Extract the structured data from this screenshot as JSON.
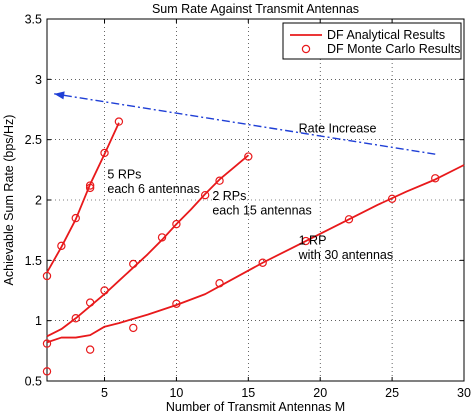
{
  "chart_data": {
    "type": "line",
    "title": "Sum Rate Against Transmit Antennas",
    "xlabel": "Number of Transmit Antennas M",
    "ylabel": "Achievable Sum Rate (bps/Hz)",
    "xlim": [
      1,
      30
    ],
    "ylim": [
      0.5,
      3.5
    ],
    "xticks": [
      5,
      10,
      15,
      20,
      25,
      30
    ],
    "yticks": [
      0.5,
      1,
      1.5,
      2,
      2.5,
      3,
      3.5
    ],
    "grid": true,
    "legend_position": "top-right",
    "legend": [
      {
        "label": "DF Analytical Results",
        "style": "line",
        "color": "#e8191b"
      },
      {
        "label": "DF Monte Carlo Results",
        "style": "circle-marker",
        "color": "#e8191b"
      }
    ],
    "series_color": "#e8191b",
    "annotation_color": "#1f3fd6",
    "series": [
      {
        "analytical": {
          "x": [
            1,
            2,
            3,
            4,
            5,
            6
          ],
          "y": [
            1.4,
            1.61,
            1.84,
            2.13,
            2.38,
            2.64
          ]
        },
        "monte_carlo": {
          "x": [
            1,
            2,
            3,
            4,
            4,
            5,
            6
          ],
          "y": [
            1.37,
            1.62,
            1.85,
            2.1,
            2.12,
            2.39,
            2.65
          ]
        }
      },
      {
        "analytical": {
          "x": [
            1,
            2,
            3,
            4,
            5,
            6,
            7,
            8,
            9,
            10,
            11,
            12,
            13,
            14,
            15
          ],
          "y": [
            0.87,
            0.93,
            1.02,
            1.12,
            1.22,
            1.33,
            1.44,
            1.55,
            1.67,
            1.8,
            1.92,
            2.05,
            2.17,
            2.27,
            2.37
          ]
        },
        "monte_carlo": {
          "x": [
            1,
            3,
            4,
            5,
            7,
            9,
            10,
            12,
            13,
            15
          ],
          "y": [
            0.81,
            1.02,
            1.15,
            1.25,
            1.47,
            1.69,
            1.8,
            2.04,
            2.16,
            2.36
          ]
        }
      },
      {
        "analytical": {
          "x": [
            1,
            2,
            3,
            4,
            5,
            6,
            8,
            10,
            12,
            14,
            16,
            18,
            20,
            22,
            24,
            26,
            28,
            30
          ],
          "y": [
            0.82,
            0.86,
            0.86,
            0.88,
            0.95,
            0.98,
            1.05,
            1.13,
            1.22,
            1.35,
            1.48,
            1.6,
            1.72,
            1.84,
            1.96,
            2.07,
            2.17,
            2.29
          ]
        },
        "monte_carlo": {
          "x": [
            1,
            4,
            7,
            10,
            13,
            16,
            19,
            22,
            25,
            28
          ],
          "y": [
            0.58,
            0.76,
            0.94,
            1.14,
            1.31,
            1.48,
            1.66,
            1.84,
            2.01,
            2.18
          ]
        }
      }
    ],
    "annotations": [
      {
        "text": "5 RPs",
        "x": 5.2,
        "y": 2.18
      },
      {
        "text": "each 6 antennas",
        "x": 5.2,
        "y": 2.06
      },
      {
        "text": "2 RPs",
        "x": 12.5,
        "y": 2.0
      },
      {
        "text": "each 15 antennas",
        "x": 12.5,
        "y": 1.88
      },
      {
        "text": "1 RP",
        "x": 18.5,
        "y": 1.63
      },
      {
        "text": "with 30 antennas",
        "x": 18.5,
        "y": 1.51
      },
      {
        "text": "Rate Increase",
        "x": 18.5,
        "y": 2.56
      }
    ],
    "arrow": {
      "from": [
        28,
        2.38
      ],
      "to": [
        1.5,
        2.88
      ],
      "style": "dash-dot"
    }
  }
}
